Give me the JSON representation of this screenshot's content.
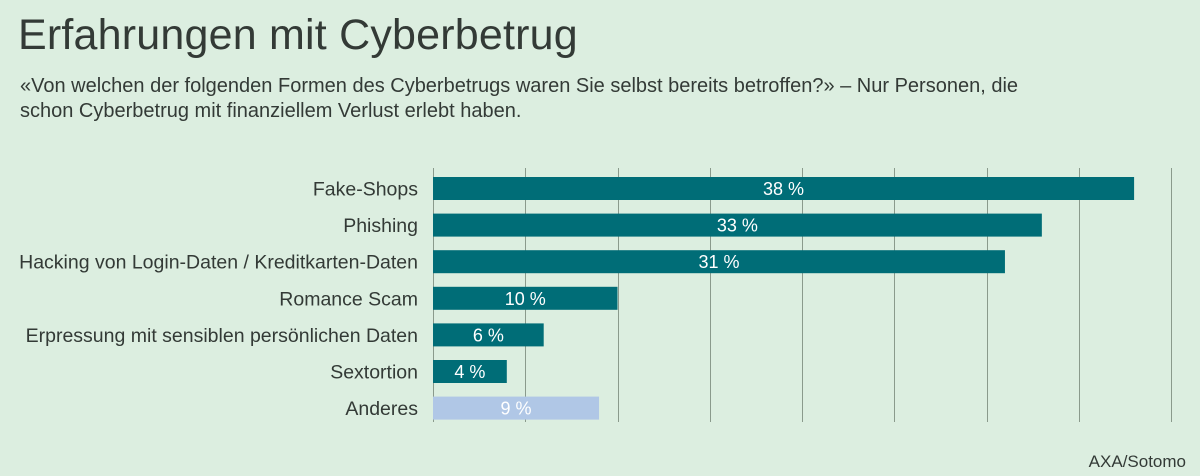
{
  "title": "Erfahrungen mit Cyberbetrug",
  "subtitle": "«Von welchen der folgenden Formen des Cyberbetrugs waren Sie selbst bereits betroffen?» – Nur Personen, die schon Cyberbetrug mit finanziellem Verlust erlebt haben.",
  "source": "AXA/Sotomo",
  "colors": {
    "background": "#dceee0",
    "bar": "#006d77",
    "bar_other": "#b0c7e6",
    "grid": "#8a9a8c",
    "text": "#333a36",
    "label_text": "#ffffff"
  },
  "chart_data": {
    "type": "bar",
    "orientation": "horizontal",
    "categories": [
      "Fake-Shops",
      "Phishing",
      "Hacking von Login-Daten / Kreditkarten-Daten",
      "Romance Scam",
      "Erpressung mit sensiblen persönlichen Daten",
      "Sextortion",
      "Anderes"
    ],
    "values": [
      38,
      33,
      31,
      10,
      6,
      4,
      9
    ],
    "value_labels": [
      "38 %",
      "33 %",
      "31 %",
      "10 %",
      "6 %",
      "4 %",
      "9 %"
    ],
    "highlight": [
      "primary",
      "primary",
      "primary",
      "primary",
      "primary",
      "primary",
      "secondary"
    ],
    "xlim": [
      0,
      40
    ],
    "x_grid_step": 5,
    "grid": true,
    "tick_labels_shown": false,
    "xlabel": "",
    "ylabel": ""
  }
}
